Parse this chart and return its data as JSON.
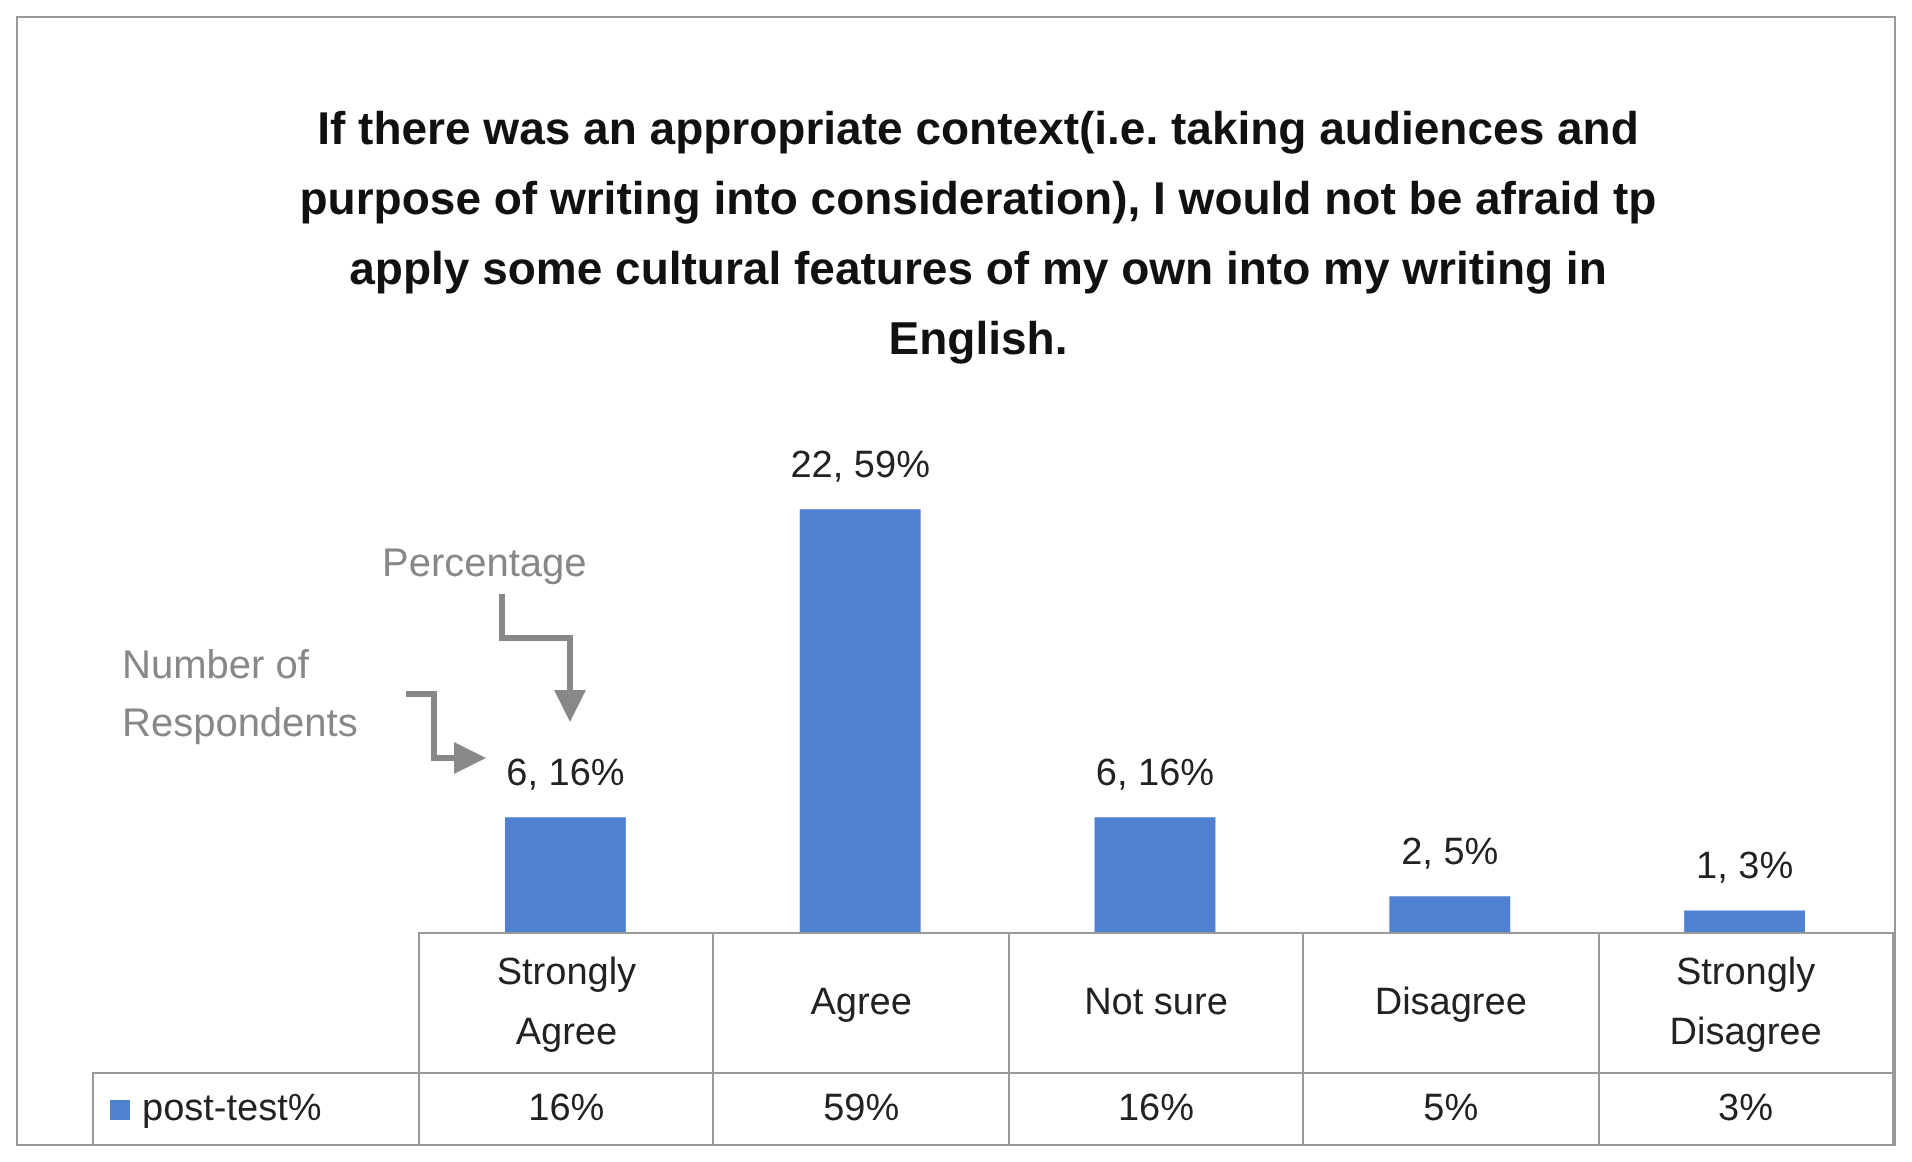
{
  "chart_data": {
    "type": "bar",
    "title": "If there was an appropriate context(i.e. taking audiences and purpose of writing into consideration), I would not be afraid tp apply some cultural features of my own into my writing in English.",
    "categories": [
      "Strongly Agree",
      "Agree",
      "Not sure",
      "Disagree",
      "Strongly Disagree"
    ],
    "series": [
      {
        "name": "post-test%",
        "color": "#4f81d0",
        "values": [
          16,
          59,
          16,
          5,
          3
        ],
        "value_labels": [
          "16%",
          "59%",
          "16%",
          "5%",
          "3%"
        ]
      }
    ],
    "annotations": [
      {
        "text": "6, 16%",
        "x": "Strongly Agree",
        "y": 16
      },
      {
        "text": "22, 59%",
        "x": "Agree",
        "y": 59
      },
      {
        "text": "6, 16%",
        "x": "Not sure",
        "y": 16
      },
      {
        "text": "2, 5%",
        "x": "Disagree",
        "y": 5
      },
      {
        "text": "1, 3%",
        "x": "Strongly Disagree",
        "y": 3
      },
      "Percentage",
      "Number of Respondents"
    ],
    "legend": "bottom left"
  }
}
